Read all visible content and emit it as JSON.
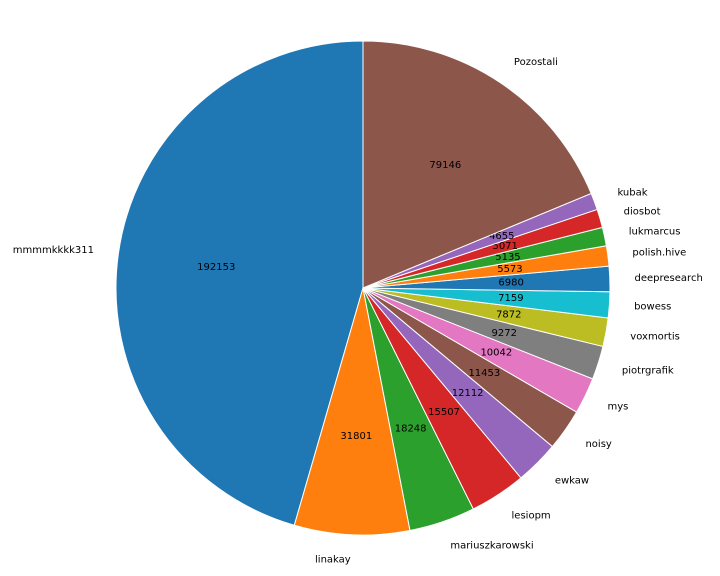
{
  "chart_data": {
    "type": "pie",
    "categories": [
      "mmmmkkkk311",
      "linakay",
      "mariuszkarowski",
      "lesiopm",
      "ewkaw",
      "noisy",
      "mys",
      "piotrgrafik",
      "voxmortis",
      "bowess",
      "deepresearch",
      "polish.hive",
      "lukmarcus",
      "diosbot",
      "kubak",
      "Pozostali"
    ],
    "values": [
      192153,
      31801,
      18248,
      15507,
      12112,
      11453,
      10042,
      9272,
      7872,
      7159,
      6980,
      5573,
      5135,
      5071,
      4655,
      79146
    ],
    "colors": [
      "#1f77b4",
      "#ff7f0e",
      "#2ca02c",
      "#d62728",
      "#9467bd",
      "#8c564b",
      "#e377c2",
      "#7f7f7f",
      "#bcbd22",
      "#17becf",
      "#1f77b4",
      "#ff7f0e",
      "#2ca02c",
      "#d62728",
      "#9467bd",
      "#8c564b"
    ]
  }
}
